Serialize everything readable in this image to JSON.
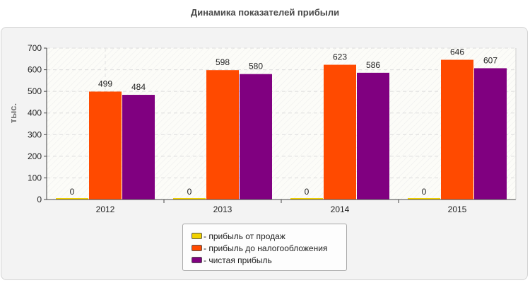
{
  "title": "Динамика показателей прибыли",
  "chart_data": {
    "type": "bar",
    "title": "Динамика показателей прибыли",
    "xlabel": "",
    "ylabel": "тыс.",
    "ylim": [
      0,
      700
    ],
    "yticks": [
      0,
      100,
      200,
      300,
      400,
      500,
      600,
      700
    ],
    "categories": [
      "2012",
      "2013",
      "2014",
      "2015"
    ],
    "series": [
      {
        "name": "прибыль от продаж",
        "color": "#f2d200",
        "values": [
          0,
          0,
          0,
          0
        ]
      },
      {
        "name": "прибыль до налогообложения",
        "color": "#ff4a00",
        "values": [
          499,
          598,
          623,
          646
        ]
      },
      {
        "name": "чистая прибыль",
        "color": "#800080",
        "values": [
          484,
          580,
          586,
          607
        ]
      }
    ],
    "grid": true,
    "data_labels": true,
    "legend_position": "bottom"
  },
  "legend": {
    "items": [
      {
        "label": "- прибыль от продаж",
        "color": "#f2d200"
      },
      {
        "label": "- прибыль до налогообложения",
        "color": "#ff4a00"
      },
      {
        "label": "- чистая прибыль",
        "color": "#800080"
      }
    ]
  }
}
